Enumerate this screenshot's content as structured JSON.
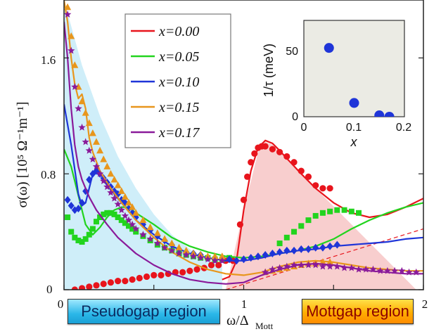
{
  "chart_data": {
    "type": "line",
    "xlabel_main": "ω/Δ",
    "xlabel_sub": "Mott",
    "ylabel": "σ(ω) [10⁵ Ω⁻¹m⁻¹]",
    "xlim": [
      0,
      2
    ],
    "ylim": [
      0,
      2.0
    ],
    "xticks": [
      "0",
      "1",
      "2"
    ],
    "yticks": [
      "0",
      "0.8",
      "1.6"
    ],
    "regions": {
      "pseudogap": "Pseudogap region",
      "mottgap": "Mottgap region"
    },
    "colors": {
      "x000": "#e8141c",
      "x005": "#22d41e",
      "x010": "#1f35d8",
      "x015": "#e8961c",
      "x017": "#8a1a9a",
      "pseudogap_fill": "#cfeef9",
      "mottgap_fill": "#f7c6c6"
    },
    "series": [
      {
        "name": "x=0.00",
        "marker": "circle",
        "line_x": [
          0.88,
          0.92,
          0.96,
          1.0,
          1.04,
          1.08,
          1.12,
          1.16,
          1.2,
          1.26,
          1.32,
          1.4,
          1.5,
          1.6,
          1.7,
          1.8,
          1.9,
          2.0
        ],
        "line_y": [
          0.07,
          0.09,
          0.2,
          0.55,
          0.82,
          0.98,
          1.03,
          1.01,
          0.96,
          0.88,
          0.8,
          0.7,
          0.6,
          0.53,
          0.5,
          0.52,
          0.57,
          0.63
        ],
        "points_x": [
          0.06,
          0.1,
          0.14,
          0.18,
          0.22,
          0.26,
          0.3,
          0.34,
          0.38,
          0.42,
          0.46,
          0.5,
          0.54,
          0.58,
          0.62,
          0.66,
          0.7,
          0.74,
          0.78,
          0.82,
          0.86,
          0.9,
          0.94,
          0.98,
          1.0,
          1.02,
          1.04,
          1.06,
          1.08,
          1.1,
          1.12,
          1.16,
          1.2,
          1.24,
          1.28,
          1.32,
          1.36,
          1.4,
          1.44,
          1.48
        ],
        "points_y": [
          0.0,
          0.01,
          0.02,
          0.03,
          0.04,
          0.05,
          0.06,
          0.06,
          0.07,
          0.08,
          0.09,
          0.1,
          0.1,
          0.11,
          0.12,
          0.12,
          0.13,
          0.14,
          0.15,
          0.17,
          0.17,
          0.2,
          0.2,
          0.45,
          0.62,
          0.78,
          0.88,
          0.94,
          0.98,
          0.99,
          0.99,
          0.97,
          0.95,
          0.92,
          0.88,
          0.82,
          0.78,
          0.72,
          0.7,
          0.7
        ]
      },
      {
        "name": "x=0.05",
        "marker": "square",
        "line_x": [
          0.0,
          0.04,
          0.08,
          0.12,
          0.16,
          0.2,
          0.24,
          0.28,
          0.32,
          0.36,
          0.4,
          0.5,
          0.6,
          0.7,
          0.8,
          0.9,
          1.0,
          1.1,
          1.2,
          1.3,
          1.4,
          1.5,
          1.6,
          1.7,
          1.8,
          1.9,
          2.0
        ],
        "line_y": [
          0.97,
          0.85,
          0.65,
          0.45,
          0.38,
          0.43,
          0.5,
          0.55,
          0.57,
          0.57,
          0.53,
          0.45,
          0.36,
          0.3,
          0.26,
          0.23,
          0.22,
          0.23,
          0.25,
          0.27,
          0.3,
          0.35,
          0.42,
          0.48,
          0.53,
          0.57,
          0.6
        ],
        "points_x": [
          0.02,
          0.04,
          0.06,
          0.08,
          0.1,
          0.12,
          0.14,
          0.16,
          0.18,
          0.2,
          0.22,
          0.24,
          0.26,
          0.28,
          0.3,
          0.32,
          0.34,
          0.36,
          0.38,
          0.4,
          0.44,
          0.48,
          0.52,
          0.56,
          0.6,
          0.64,
          0.68,
          0.72,
          0.76,
          0.8,
          0.84,
          0.88,
          0.92,
          1.2,
          1.24,
          1.28,
          1.32,
          1.36,
          1.4,
          1.44,
          1.48,
          1.52,
          1.56,
          1.6,
          1.64
        ],
        "points_y": [
          0.5,
          0.4,
          0.36,
          0.34,
          0.33,
          0.35,
          0.38,
          0.42,
          0.47,
          0.5,
          0.52,
          0.53,
          0.53,
          0.52,
          0.5,
          0.48,
          0.46,
          0.44,
          0.42,
          0.4,
          0.37,
          0.34,
          0.31,
          0.29,
          0.27,
          0.25,
          0.24,
          0.23,
          0.22,
          0.22,
          0.21,
          0.21,
          0.22,
          0.32,
          0.36,
          0.4,
          0.44,
          0.48,
          0.51,
          0.53,
          0.54,
          0.55,
          0.55,
          0.54,
          0.53
        ]
      },
      {
        "name": "x=0.10",
        "marker": "diamond",
        "line_x": [
          0.0,
          0.04,
          0.08,
          0.1,
          0.12,
          0.14,
          0.16,
          0.18,
          0.2,
          0.24,
          0.28,
          0.32,
          0.36,
          0.4,
          0.5,
          0.6,
          0.7,
          0.8,
          0.9,
          1.0,
          1.1,
          1.2,
          1.3,
          1.4,
          1.5,
          1.6,
          1.7,
          1.8,
          1.9,
          2.0
        ],
        "line_y": [
          1.28,
          1.0,
          0.66,
          0.58,
          0.6,
          0.7,
          0.8,
          0.82,
          0.8,
          0.74,
          0.66,
          0.6,
          0.54,
          0.48,
          0.38,
          0.3,
          0.25,
          0.22,
          0.2,
          0.2,
          0.22,
          0.25,
          0.27,
          0.28,
          0.3,
          0.31,
          0.32,
          0.33,
          0.35,
          0.36
        ],
        "points_x": [
          0.02,
          0.04,
          0.06,
          0.08,
          0.1,
          0.12,
          0.14,
          0.16,
          0.18,
          0.2,
          0.22,
          0.24,
          0.26,
          0.28,
          0.3,
          0.32,
          0.34,
          0.36,
          0.38,
          0.4,
          0.44,
          0.48,
          0.52,
          0.56,
          0.6,
          0.64,
          0.68,
          0.72,
          0.76,
          0.8,
          0.84,
          0.88,
          0.92,
          0.96,
          1.0,
          1.04,
          1.08,
          1.12,
          1.16,
          1.2,
          1.24,
          1.28,
          1.32,
          1.36,
          1.4,
          1.44,
          1.48,
          1.52
        ],
        "points_y": [
          0.62,
          0.58,
          0.55,
          0.56,
          0.6,
          0.68,
          0.76,
          0.8,
          0.82,
          0.8,
          0.77,
          0.74,
          0.71,
          0.68,
          0.66,
          0.62,
          0.6,
          0.56,
          0.53,
          0.5,
          0.45,
          0.41,
          0.37,
          0.34,
          0.31,
          0.28,
          0.26,
          0.25,
          0.24,
          0.22,
          0.21,
          0.21,
          0.21,
          0.2,
          0.21,
          0.22,
          0.23,
          0.24,
          0.25,
          0.26,
          0.27,
          0.27,
          0.28,
          0.28,
          0.29,
          0.29,
          0.3,
          0.31
        ]
      },
      {
        "name": "x=0.15",
        "marker": "triangle",
        "line_x": [
          0.0,
          0.02,
          0.04,
          0.06,
          0.08,
          0.1,
          0.12,
          0.14,
          0.16,
          0.2,
          0.26,
          0.32,
          0.4,
          0.5,
          0.6,
          0.7,
          0.8,
          0.9,
          1.0,
          1.1,
          1.2,
          1.3,
          1.4,
          1.5,
          1.6,
          1.7,
          1.8,
          1.9,
          2.0
        ],
        "line_y": [
          2.0,
          1.85,
          1.6,
          1.42,
          1.32,
          1.35,
          1.25,
          1.05,
          0.95,
          0.82,
          0.7,
          0.6,
          0.48,
          0.36,
          0.26,
          0.19,
          0.14,
          0.11,
          0.1,
          0.12,
          0.16,
          0.19,
          0.2,
          0.19,
          0.17,
          0.15,
          0.14,
          0.13,
          0.13
        ],
        "points_x": [
          0.02,
          0.04,
          0.06,
          0.08,
          0.1,
          0.12,
          0.14,
          0.16,
          0.18,
          0.2,
          0.22,
          0.24,
          0.26,
          0.28,
          0.3,
          0.32,
          0.34,
          0.36,
          0.38,
          0.4,
          0.44,
          0.48,
          0.52,
          0.56,
          0.6,
          0.64,
          0.68,
          0.72,
          0.76,
          0.8,
          0.84,
          0.88,
          1.12,
          1.16,
          1.2,
          1.24,
          1.28,
          1.32,
          1.36,
          1.4,
          1.44,
          1.48
        ],
        "points_y": [
          1.95,
          1.75,
          1.55,
          1.4,
          1.3,
          1.22,
          1.15,
          1.08,
          1.02,
          0.96,
          0.9,
          0.85,
          0.8,
          0.76,
          0.72,
          0.68,
          0.64,
          0.6,
          0.57,
          0.53,
          0.48,
          0.43,
          0.39,
          0.35,
          0.32,
          0.29,
          0.27,
          0.25,
          0.24,
          0.23,
          0.23,
          0.23,
          0.12,
          0.13,
          0.14,
          0.15,
          0.16,
          0.17,
          0.18,
          0.18,
          0.19,
          0.19
        ]
      },
      {
        "name": "x=0.17",
        "marker": "star",
        "line_x": [
          0.0,
          0.02,
          0.04,
          0.06,
          0.08,
          0.1,
          0.14,
          0.18,
          0.24,
          0.3,
          0.4,
          0.5,
          0.6,
          0.7,
          0.8,
          0.9,
          1.0,
          1.1,
          1.2,
          1.3,
          1.4,
          1.5,
          1.6,
          1.7,
          1.8,
          1.9,
          2.0
        ],
        "line_y": [
          1.85,
          1.6,
          1.25,
          1.0,
          0.85,
          0.76,
          0.64,
          0.55,
          0.45,
          0.36,
          0.25,
          0.17,
          0.11,
          0.07,
          0.05,
          0.04,
          0.05,
          0.1,
          0.14,
          0.17,
          0.18,
          0.17,
          0.15,
          0.13,
          0.12,
          0.11,
          0.11
        ],
        "points_x": [
          0.02,
          0.04,
          0.06,
          0.08,
          0.1,
          0.12,
          0.14,
          0.16,
          0.18,
          0.2,
          0.22,
          0.24,
          0.26,
          0.28,
          0.3,
          0.32,
          0.34,
          0.36,
          0.38,
          0.4,
          0.44,
          0.48,
          0.52,
          0.56,
          0.6,
          0.64,
          0.68,
          0.72,
          0.76,
          0.8,
          0.84,
          0.88,
          1.12,
          1.16,
          1.2,
          1.24,
          1.28,
          1.32,
          1.36,
          1.4,
          1.44,
          1.48,
          1.52,
          1.56,
          1.6,
          1.64,
          1.68,
          1.72,
          1.76,
          1.8,
          1.84,
          1.88,
          1.92,
          1.96
        ],
        "points_y": [
          1.9,
          1.65,
          1.4,
          1.25,
          1.12,
          1.02,
          0.96,
          0.9,
          0.85,
          0.8,
          0.75,
          0.71,
          0.67,
          0.63,
          0.59,
          0.55,
          0.51,
          0.48,
          0.45,
          0.42,
          0.38,
          0.35,
          0.32,
          0.29,
          0.27,
          0.25,
          0.24,
          0.23,
          0.22,
          0.21,
          0.2,
          0.2,
          0.12,
          0.14,
          0.15,
          0.16,
          0.17,
          0.17,
          0.17,
          0.17,
          0.16,
          0.16,
          0.16,
          0.15,
          0.15,
          0.14,
          0.14,
          0.14,
          0.13,
          0.13,
          0.13,
          0.13,
          0.12,
          0.12
        ]
      }
    ],
    "pseudogap_area": {
      "x": [
        0.0,
        0.1,
        0.2,
        0.3,
        0.4,
        0.5,
        0.6,
        0.7,
        0.8,
        0.88,
        0.88
      ],
      "y": [
        2.0,
        1.55,
        1.2,
        0.92,
        0.7,
        0.52,
        0.38,
        0.28,
        0.2,
        0.18,
        0.0
      ]
    },
    "mottgap_area": {
      "x": [
        0.9,
        1.0,
        1.08,
        1.12,
        1.16,
        1.24,
        1.4,
        1.6,
        1.8,
        1.96
      ],
      "y": [
        0.0,
        0.55,
        0.95,
        1.02,
        1.0,
        0.9,
        0.7,
        0.45,
        0.2,
        0.0
      ]
    },
    "dashed_line": {
      "x": [
        0.9,
        2.0
      ],
      "y": [
        0.0,
        0.42
      ]
    },
    "inset": {
      "type": "scatter",
      "xlabel": "x",
      "ylabel": "1/τ (meV)",
      "xlim": [
        0,
        0.2
      ],
      "ylim": [
        0,
        70
      ],
      "xticks": [
        "0",
        "0.1",
        "0.2"
      ],
      "yticks": [
        "0",
        "50"
      ],
      "points_x": [
        0.05,
        0.1,
        0.15,
        0.17
      ],
      "points_y": [
        50,
        10,
        1,
        0
      ],
      "color": "#1f35d8"
    }
  }
}
